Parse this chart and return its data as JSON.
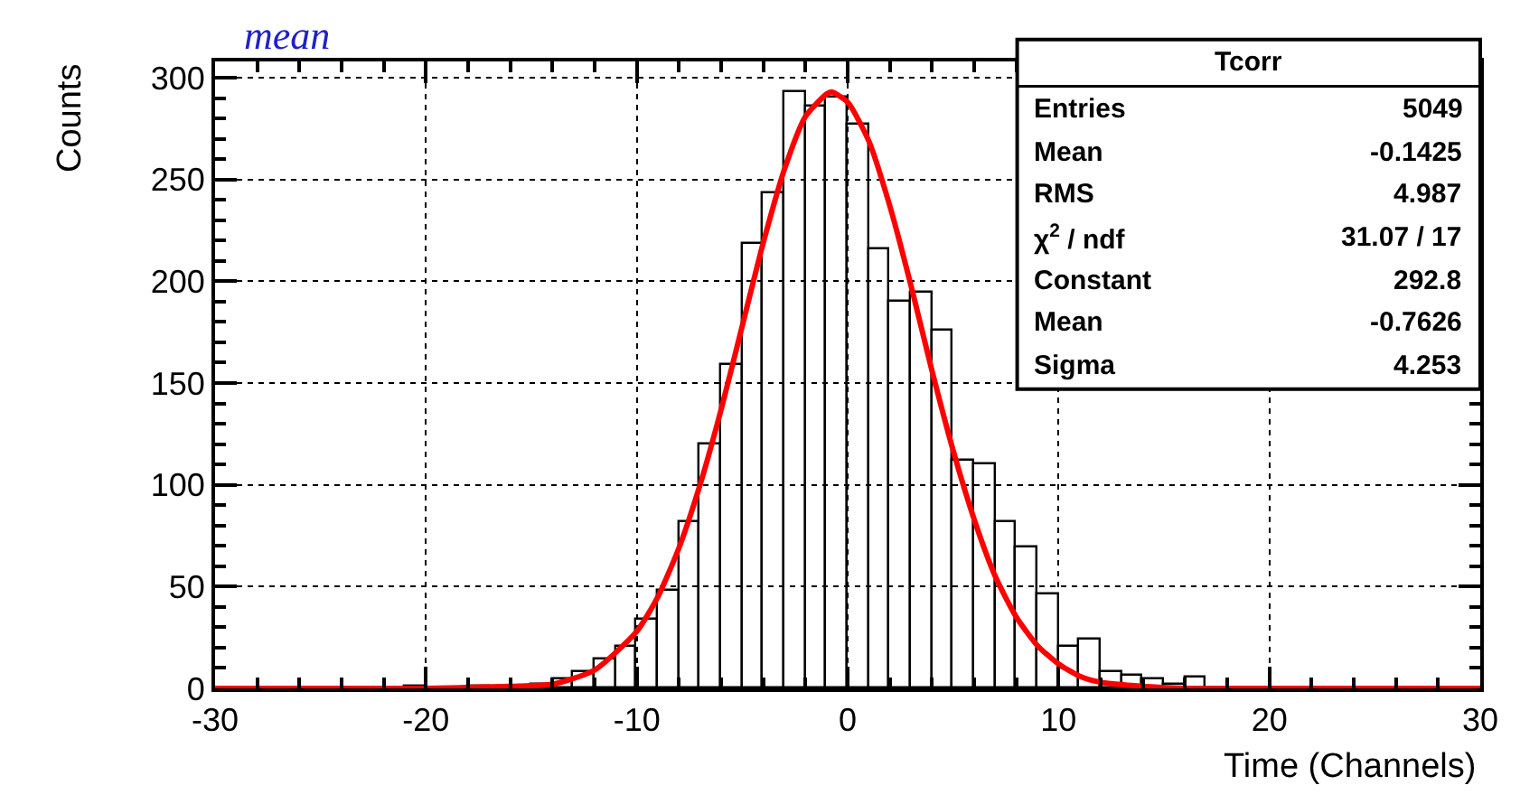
{
  "chart_data": {
    "type": "histogram",
    "xlabel": "Time (Channels)",
    "ylabel": "Counts",
    "bins": [
      -30,
      -29,
      -28,
      -27,
      -26,
      -25,
      -24,
      -23,
      -22,
      -21,
      -20,
      -19,
      -18,
      -17,
      -16,
      -15,
      -14,
      -13,
      -12,
      -11,
      -10,
      -9,
      -8,
      -7,
      -6,
      -5,
      -4,
      -3,
      -2,
      -1,
      0,
      1,
      2,
      3,
      4,
      5,
      6,
      7,
      8,
      9,
      10,
      11,
      12,
      13,
      14,
      15,
      16,
      17,
      18,
      19,
      20,
      21,
      22,
      23,
      24,
      25,
      26,
      27,
      28,
      29,
      30
    ],
    "values": [
      0,
      0,
      0,
      0,
      0,
      0,
      0,
      0,
      0,
      1,
      0,
      0,
      1,
      0,
      0,
      2,
      4,
      8,
      14,
      20,
      34,
      48,
      82,
      120,
      159,
      218,
      243,
      293,
      286,
      290,
      277,
      216,
      190,
      194,
      176,
      112,
      110,
      82,
      69,
      46,
      20,
      24,
      8,
      6,
      4,
      2,
      5,
      0,
      0,
      0,
      0,
      0,
      0,
      0,
      0,
      0,
      0,
      0,
      0,
      0
    ],
    "color": "#000000",
    "series": [
      {
        "type": "line",
        "color": "#ff0000",
        "x": [
          -30,
          -20,
          -16,
          -14,
          -12,
          -10,
          -9,
          -8,
          -7,
          -6,
          -5,
          -4,
          -3,
          -2,
          -1,
          -0.76,
          0,
          1,
          2,
          3,
          4,
          5,
          6,
          7,
          8,
          9,
          10,
          11,
          12,
          14,
          16,
          20,
          30
        ],
        "values": [
          0,
          0,
          1,
          2,
          9,
          28,
          45,
          69,
          100,
          137,
          178,
          219,
          255,
          281,
          292,
          293,
          288,
          269,
          237,
          198,
          156,
          117,
          83,
          55,
          35,
          21,
          12,
          6,
          3,
          1,
          0,
          0,
          0
        ]
      }
    ],
    "xlim": [
      -30,
      30
    ],
    "xticks": [
      -30,
      -20,
      -10,
      0,
      10,
      20,
      30
    ],
    "ylim": [
      0,
      308
    ],
    "yticks": [
      0,
      50,
      100,
      150,
      200,
      250,
      300
    ],
    "grid": true,
    "marker": "none",
    "line_style": "solid",
    "annotations": [
      "mean",
      "Tcorr",
      "Entries",
      "5049",
      "Mean",
      "-0.1425",
      "RMS",
      "4.987",
      "χ$^{2}$ / ndf",
      "31.07 / 17",
      "Constant",
      "292.8",
      "Mean",
      "-0.7626",
      "Sigma",
      "4.253"
    ]
  }
}
